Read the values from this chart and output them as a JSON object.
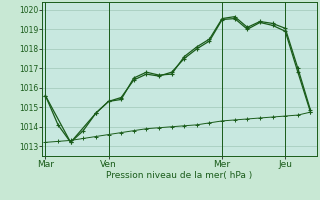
{
  "background_color": "#c8e8d4",
  "plot_bg_color": "#c8e8e0",
  "grid_color": "#a0c8b8",
  "line_color": "#1a5c1a",
  "xlabel": "Pression niveau de la mer( hPa )",
  "ylim": [
    1012.5,
    1020.4
  ],
  "yticks": [
    1013,
    1014,
    1015,
    1016,
    1017,
    1018,
    1019,
    1020
  ],
  "day_labels": [
    "Mar",
    "Ven",
    "Mer",
    "Jeu"
  ],
  "day_positions": [
    0,
    5,
    14,
    19
  ],
  "xlim": [
    -0.3,
    21.5
  ],
  "main_x": [
    0,
    1,
    2,
    3,
    4,
    5,
    6,
    7,
    8,
    9,
    10,
    11,
    12,
    13,
    14,
    15,
    16,
    17,
    18,
    19,
    20,
    21
  ],
  "main_y": [
    1015.6,
    1014.1,
    1013.2,
    1013.8,
    1014.7,
    1015.3,
    1015.4,
    1016.5,
    1016.8,
    1016.65,
    1016.7,
    1017.6,
    1018.1,
    1018.5,
    1019.55,
    1019.65,
    1019.1,
    1019.4,
    1019.3,
    1019.05,
    1017.0,
    1014.85
  ],
  "smooth_x": [
    0,
    2,
    4,
    5,
    6,
    7,
    8,
    9,
    10,
    11,
    12,
    13,
    14,
    15,
    16,
    17,
    18,
    19,
    20,
    21
  ],
  "smooth_y": [
    1015.6,
    1013.2,
    1014.7,
    1015.3,
    1015.5,
    1016.4,
    1016.7,
    1016.6,
    1016.8,
    1017.5,
    1018.0,
    1018.4,
    1019.5,
    1019.55,
    1019.0,
    1019.35,
    1019.2,
    1018.9,
    1016.8,
    1014.75
  ],
  "flat_x": [
    0,
    1,
    2,
    3,
    4,
    5,
    6,
    7,
    8,
    9,
    10,
    11,
    12,
    13,
    14,
    15,
    16,
    17,
    18,
    19,
    20,
    21
  ],
  "flat_y": [
    1013.2,
    1013.25,
    1013.3,
    1013.4,
    1013.5,
    1013.6,
    1013.7,
    1013.8,
    1013.9,
    1013.95,
    1014.0,
    1014.05,
    1014.1,
    1014.2,
    1014.3,
    1014.35,
    1014.4,
    1014.45,
    1014.5,
    1014.55,
    1014.6,
    1014.75
  ],
  "figsize": [
    3.2,
    2.0
  ],
  "dpi": 100
}
